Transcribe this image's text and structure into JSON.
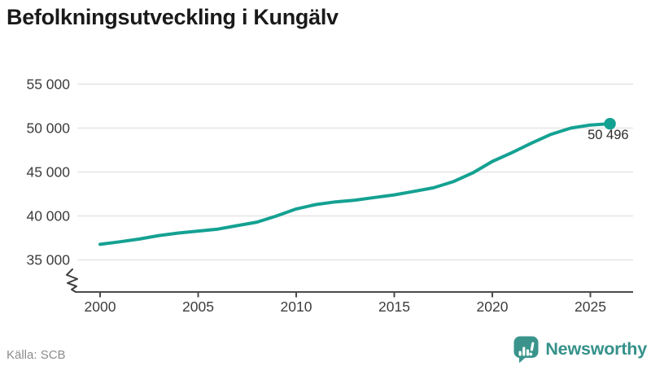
{
  "header": {
    "title": "Befolkningsutveckling i Kungälv"
  },
  "footer": {
    "source": "Källa: SCB",
    "brand": "Newsworthy"
  },
  "colors": {
    "line": "#14a192",
    "grid": "#e6e6e6",
    "axis": "#4b4b4b",
    "tick_text": "#3d3d3d",
    "title_text": "#1a1a1a",
    "source_text": "#8c8c8c",
    "value_label_text": "#2b2b2b",
    "brand_teal": "#35918a"
  },
  "chart_data": {
    "type": "line",
    "title": "Befolkningsutveckling i Kungälv",
    "x": [
      2000,
      2001,
      2002,
      2003,
      2004,
      2005,
      2006,
      2007,
      2008,
      2009,
      2010,
      2011,
      2012,
      2013,
      2014,
      2015,
      2016,
      2017,
      2018,
      2019,
      2020,
      2021,
      2022,
      2023,
      2024,
      2025,
      2026
    ],
    "values": [
      36770,
      37060,
      37370,
      37770,
      38060,
      38280,
      38500,
      38900,
      39300,
      40000,
      40800,
      41300,
      41600,
      41800,
      42100,
      42400,
      42800,
      43200,
      43900,
      44900,
      46200,
      47200,
      48300,
      49300,
      50000,
      50350,
      50496
    ],
    "last_point": {
      "x": 2026,
      "value": 50496,
      "label": "50 496"
    },
    "xticks": [
      2000,
      2005,
      2010,
      2015,
      2020,
      2025
    ],
    "yticks": [
      35000,
      40000,
      45000,
      50000,
      55000
    ],
    "ytick_labels": [
      "35 000",
      "40 000",
      "45 000",
      "50 000",
      "55 000"
    ],
    "xlabel": "",
    "ylabel": "",
    "xlim": [
      1998.8,
      2027.2
    ],
    "ylim_displayed": [
      35000,
      55000
    ],
    "axis_break_at_origin": true,
    "grid": "horizontal",
    "legend": "none"
  }
}
